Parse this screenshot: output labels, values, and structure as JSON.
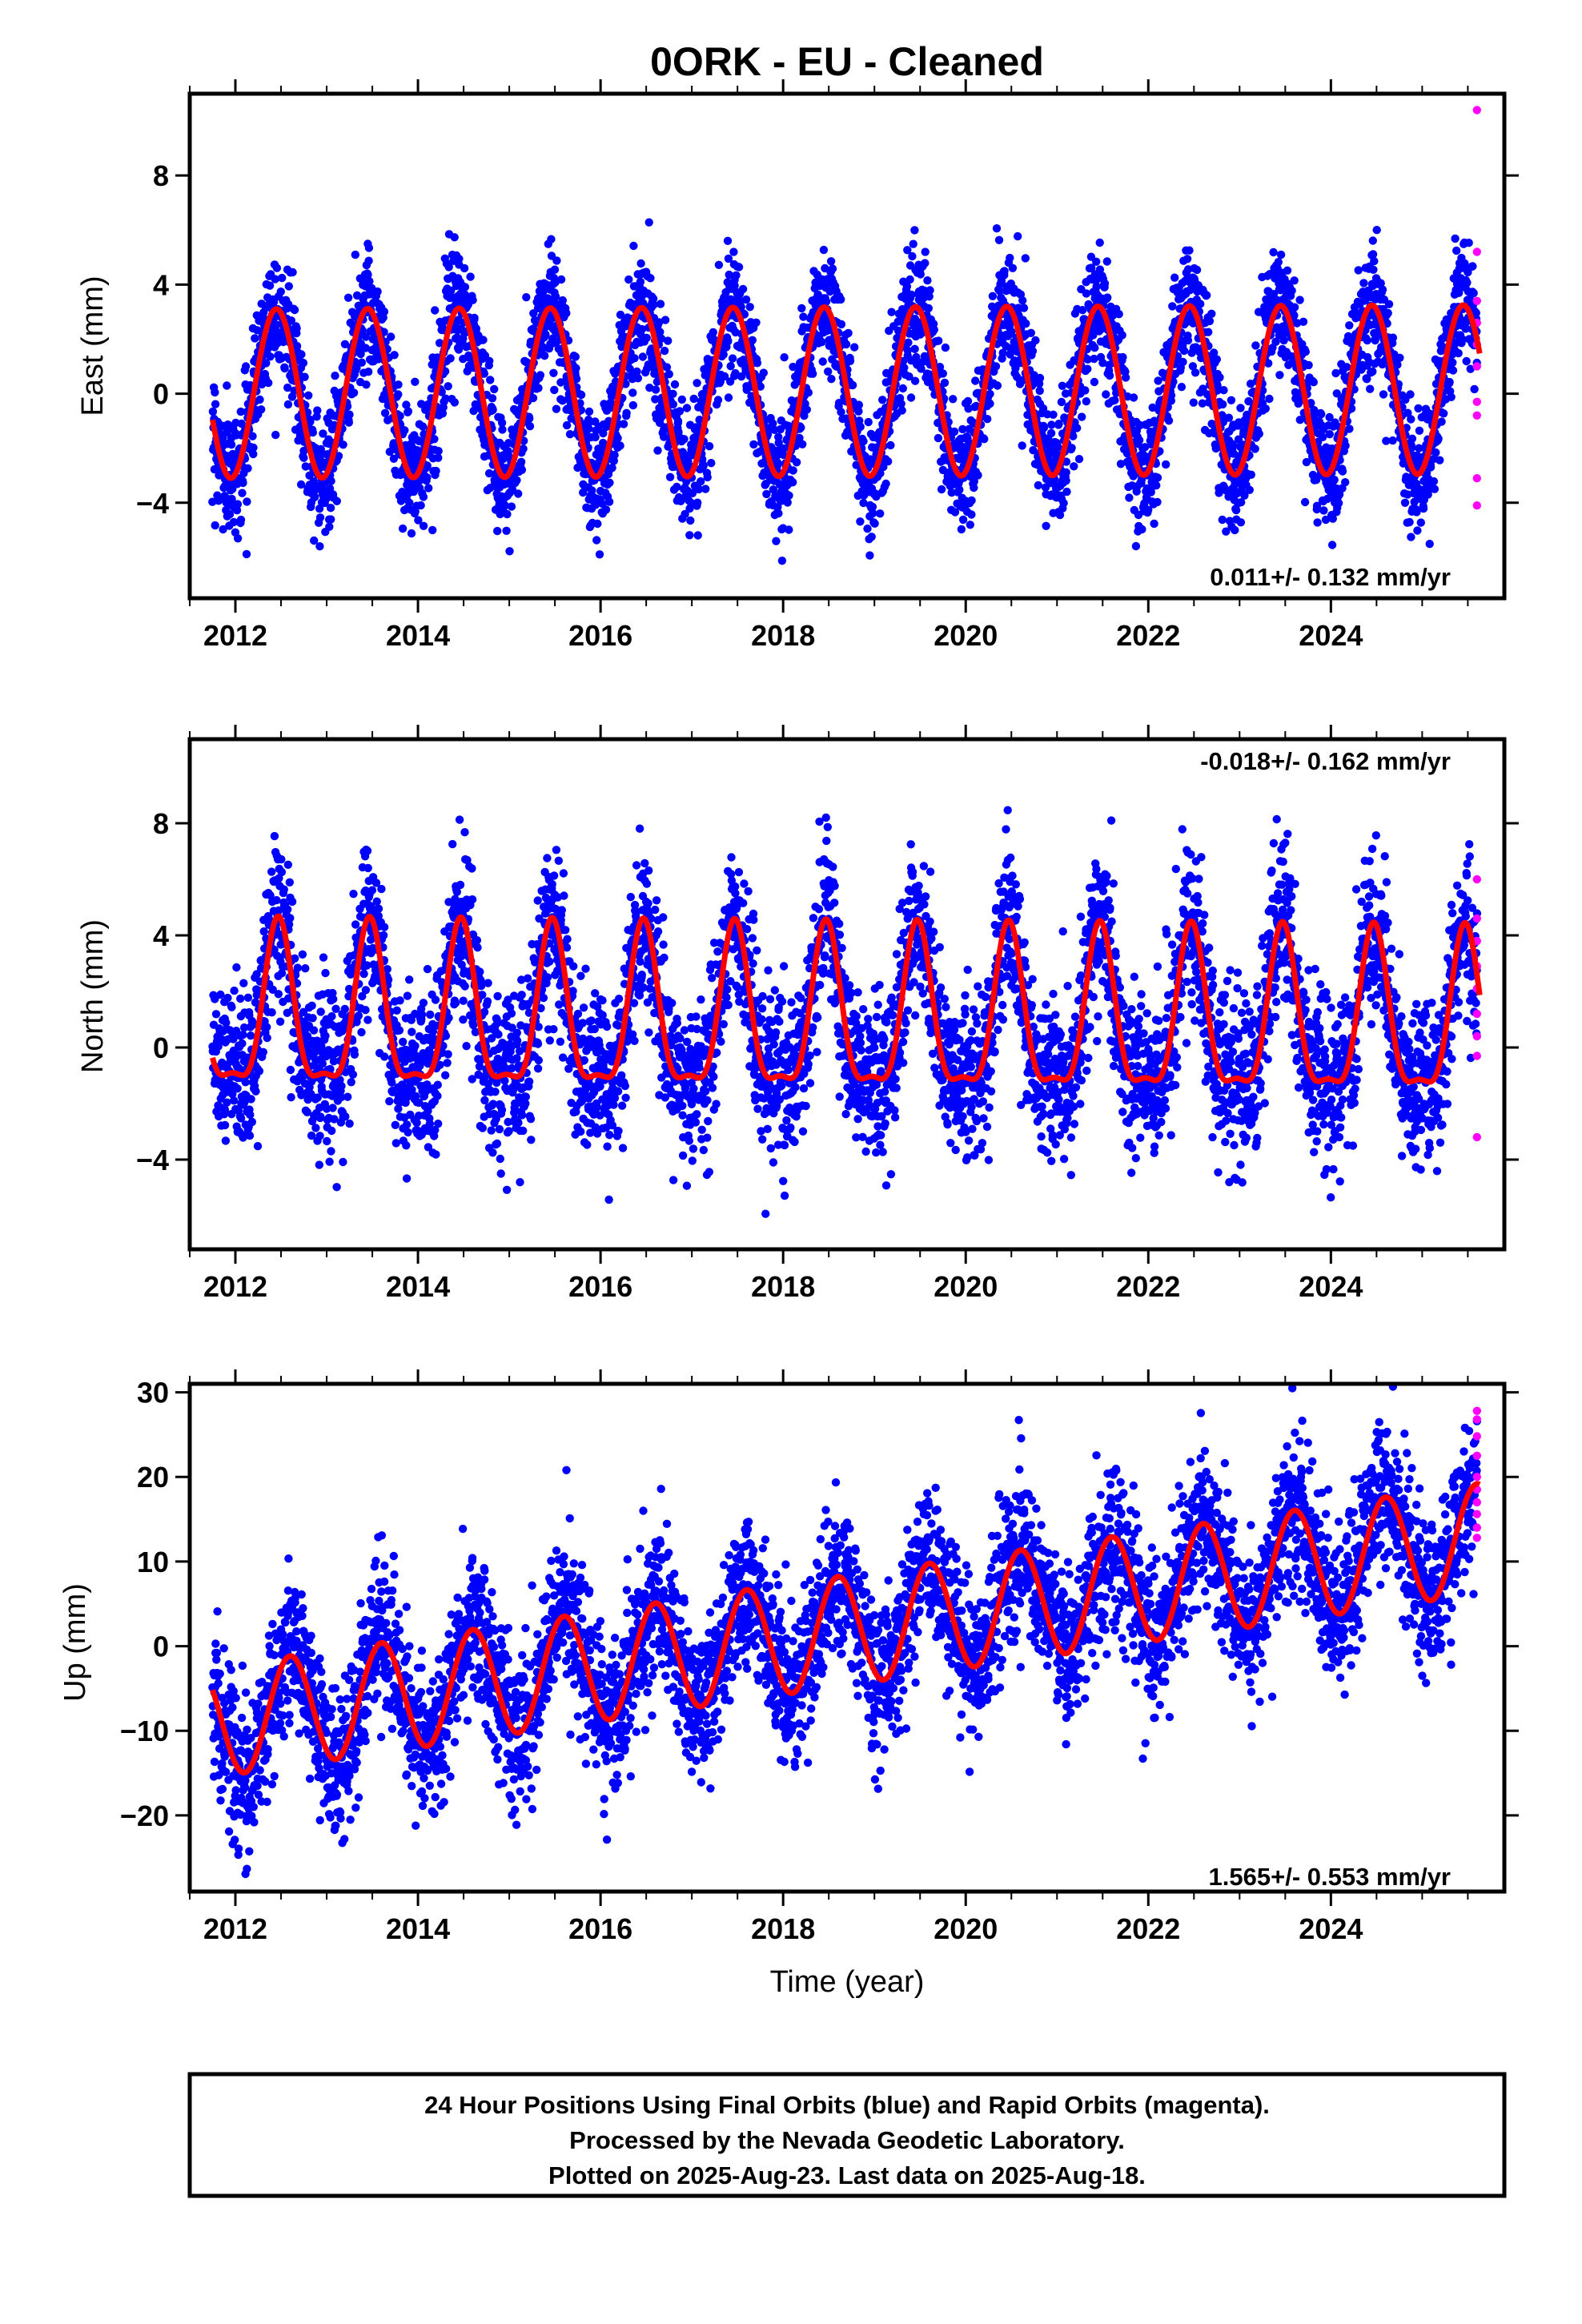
{
  "title": "0ORK  - EU - Cleaned",
  "colors": {
    "final_orbits": "#0000ff",
    "rapid_orbits": "#ff00ff",
    "model_fit": "#ff0000",
    "frame": "#000000"
  },
  "chart_data": [
    {
      "type": "scatter",
      "ylabel": "East (mm)",
      "xlabel": "",
      "xlim": [
        2011.5,
        2025.9
      ],
      "ylim": [
        -7.5,
        11.0
      ],
      "yticks": [
        -4,
        0,
        4,
        8
      ],
      "xticks": [
        2012,
        2014,
        2016,
        2018,
        2020,
        2022,
        2024
      ],
      "xtick_labels": [
        "2012",
        "2014",
        "2016",
        "2018",
        "2020",
        "2022",
        "2024"
      ],
      "rate_label": "0.011+/- 0.132 mm/yr",
      "rate_position": "bottom-right",
      "model": {
        "t_start": 2011.75,
        "t_end": 2025.63,
        "t0": 2011.75,
        "offset": 0.0,
        "slope": 0.011,
        "annual_amplitude": 3.1,
        "peak_phase": 0.45,
        "semiannual_amplitude": 0.0
      },
      "scatter": {
        "sigma": 1.1,
        "n_points": 4800
      },
      "series": [
        {
          "name": "Final Orbits",
          "color": "#0000ff",
          "kind": "points"
        },
        {
          "name": "Rapid Orbits",
          "color": "#ff00ff",
          "kind": "points",
          "points": [
            [
              2025.6,
              10.4
            ],
            [
              2025.6,
              5.2
            ],
            [
              2025.6,
              3.4
            ],
            [
              2025.6,
              2.6
            ],
            [
              2025.6,
              1.8
            ],
            [
              2025.6,
              1.0
            ],
            [
              2025.6,
              -0.3
            ],
            [
              2025.6,
              -0.8
            ],
            [
              2025.6,
              -3.1
            ],
            [
              2025.6,
              -4.1
            ]
          ]
        },
        {
          "name": "Model",
          "color": "#ff0000",
          "kind": "line"
        }
      ]
    },
    {
      "type": "scatter",
      "ylabel": "North (mm)",
      "xlabel": "",
      "xlim": [
        2011.5,
        2025.9
      ],
      "ylim": [
        -7.2,
        11.0
      ],
      "yticks": [
        -4,
        0,
        4,
        8
      ],
      "xticks": [
        2012,
        2014,
        2016,
        2018,
        2020,
        2022,
        2024
      ],
      "xtick_labels": [
        "2012",
        "2014",
        "2016",
        "2018",
        "2020",
        "2022",
        "2024"
      ],
      "rate_label": "-0.018+/- 0.162 mm/yr",
      "rate_position": "top-right",
      "model": {
        "t_start": 2011.75,
        "t_end": 2025.63,
        "t0": 2011.75,
        "offset": 1.0,
        "slope": -0.018,
        "annual_amplitude": 2.8,
        "peak_phase": 0.47,
        "semiannual_amplitude": 0.9
      },
      "scatter": {
        "sigma": 1.4,
        "n_points": 4800
      },
      "series": [
        {
          "name": "Final Orbits",
          "color": "#0000ff",
          "kind": "points"
        },
        {
          "name": "Rapid Orbits",
          "color": "#ff00ff",
          "kind": "points",
          "points": [
            [
              2025.6,
              6.0
            ],
            [
              2025.6,
              4.6
            ],
            [
              2025.6,
              3.8
            ],
            [
              2025.6,
              2.9
            ],
            [
              2025.6,
              2.1
            ],
            [
              2025.6,
              1.2
            ],
            [
              2025.6,
              0.4
            ],
            [
              2025.6,
              -0.3
            ],
            [
              2025.6,
              -3.2
            ]
          ]
        },
        {
          "name": "Model",
          "color": "#ff0000",
          "kind": "line"
        }
      ]
    },
    {
      "type": "scatter",
      "ylabel": "Up (mm)",
      "xlabel": "Time (year)",
      "xlim": [
        2011.5,
        2025.9
      ],
      "ylim": [
        -29.0,
        31.0
      ],
      "yticks": [
        -20,
        -10,
        0,
        10,
        20,
        30
      ],
      "xticks": [
        2012,
        2014,
        2016,
        2018,
        2020,
        2022,
        2024
      ],
      "xtick_labels": [
        "2012",
        "2014",
        "2016",
        "2018",
        "2020",
        "2022",
        "2024"
      ],
      "rate_label": "1.565+/- 0.553 mm/yr",
      "rate_position": "bottom-right",
      "model": {
        "t_start": 2011.75,
        "t_end": 2025.63,
        "t0": 2011.75,
        "offset": -9.0,
        "slope": 1.565,
        "annual_amplitude": 6.5,
        "peak_phase": 0.6,
        "semiannual_amplitude": 0.0
      },
      "scatter": {
        "sigma": 4.5,
        "n_points": 4800
      },
      "series": [
        {
          "name": "Final Orbits",
          "color": "#0000ff",
          "kind": "points"
        },
        {
          "name": "Rapid Orbits",
          "color": "#ff00ff",
          "kind": "points",
          "points": [
            [
              2025.6,
              27.8
            ],
            [
              2025.6,
              26.8
            ],
            [
              2025.6,
              24.8
            ],
            [
              2025.6,
              22.5
            ],
            [
              2025.6,
              20.0
            ],
            [
              2025.6,
              18.5
            ],
            [
              2025.6,
              17.0
            ],
            [
              2025.6,
              15.6
            ],
            [
              2025.6,
              14.0
            ],
            [
              2025.6,
              12.8
            ]
          ]
        },
        {
          "name": "Model",
          "color": "#ff0000",
          "kind": "line"
        }
      ]
    }
  ],
  "footer": {
    "line1": "24 Hour Positions Using Final Orbits (blue) and Rapid Orbits (magenta).",
    "line2": "Processed by the Nevada Geodetic Laboratory.",
    "line3": "Plotted on 2025-Aug-23. Last data on 2025-Aug-18."
  }
}
